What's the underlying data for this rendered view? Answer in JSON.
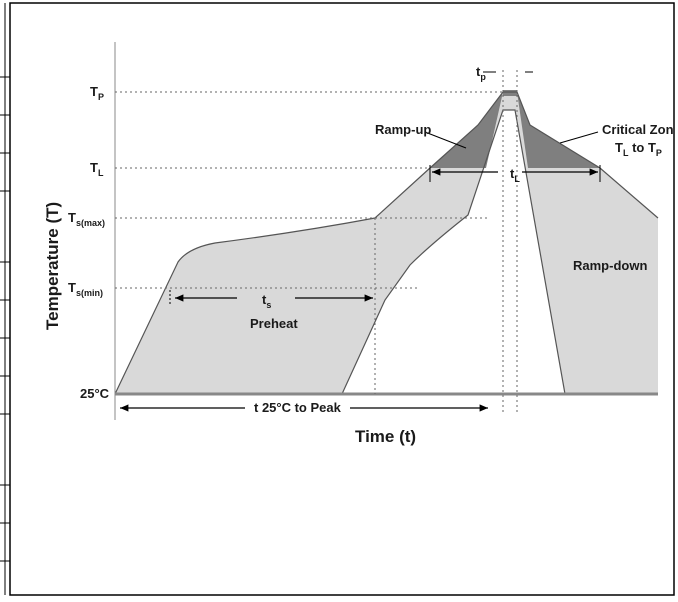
{
  "diagram": {
    "x_axis_label": "Time (t)",
    "y_axis_label": "Temperature (T)",
    "y_levels": [
      {
        "id": "tp",
        "main": "T",
        "sub": "P"
      },
      {
        "id": "tl",
        "main": "T",
        "sub": "L"
      },
      {
        "id": "tsmax",
        "main": "T",
        "sub": "s(max)"
      },
      {
        "id": "tsmin",
        "main": "T",
        "sub": "s(min)"
      },
      {
        "id": "t25",
        "main": "25°C",
        "sub": ""
      }
    ],
    "annotations": {
      "tp_main": "t",
      "tp_sub": "p",
      "tl_main": "t",
      "tl_sub": "L",
      "ts_main": "t",
      "ts_sub": "s",
      "preheat": "Preheat",
      "ramp_up": "Ramp-up",
      "ramp_down": "Ramp-down",
      "critical_zone_line1": "Critical Zon",
      "critical_zone_line2_main": "T",
      "critical_zone_line2_sub1": "L",
      "critical_zone_line2_mid": " to T",
      "critical_zone_line2_sub2": "P",
      "time_to_peak": "t 25°C to Peak"
    },
    "colors": {
      "profile_fill": "#d9d9d9",
      "critical_fill": "#7f7f7f",
      "line": "#555555"
    }
  }
}
